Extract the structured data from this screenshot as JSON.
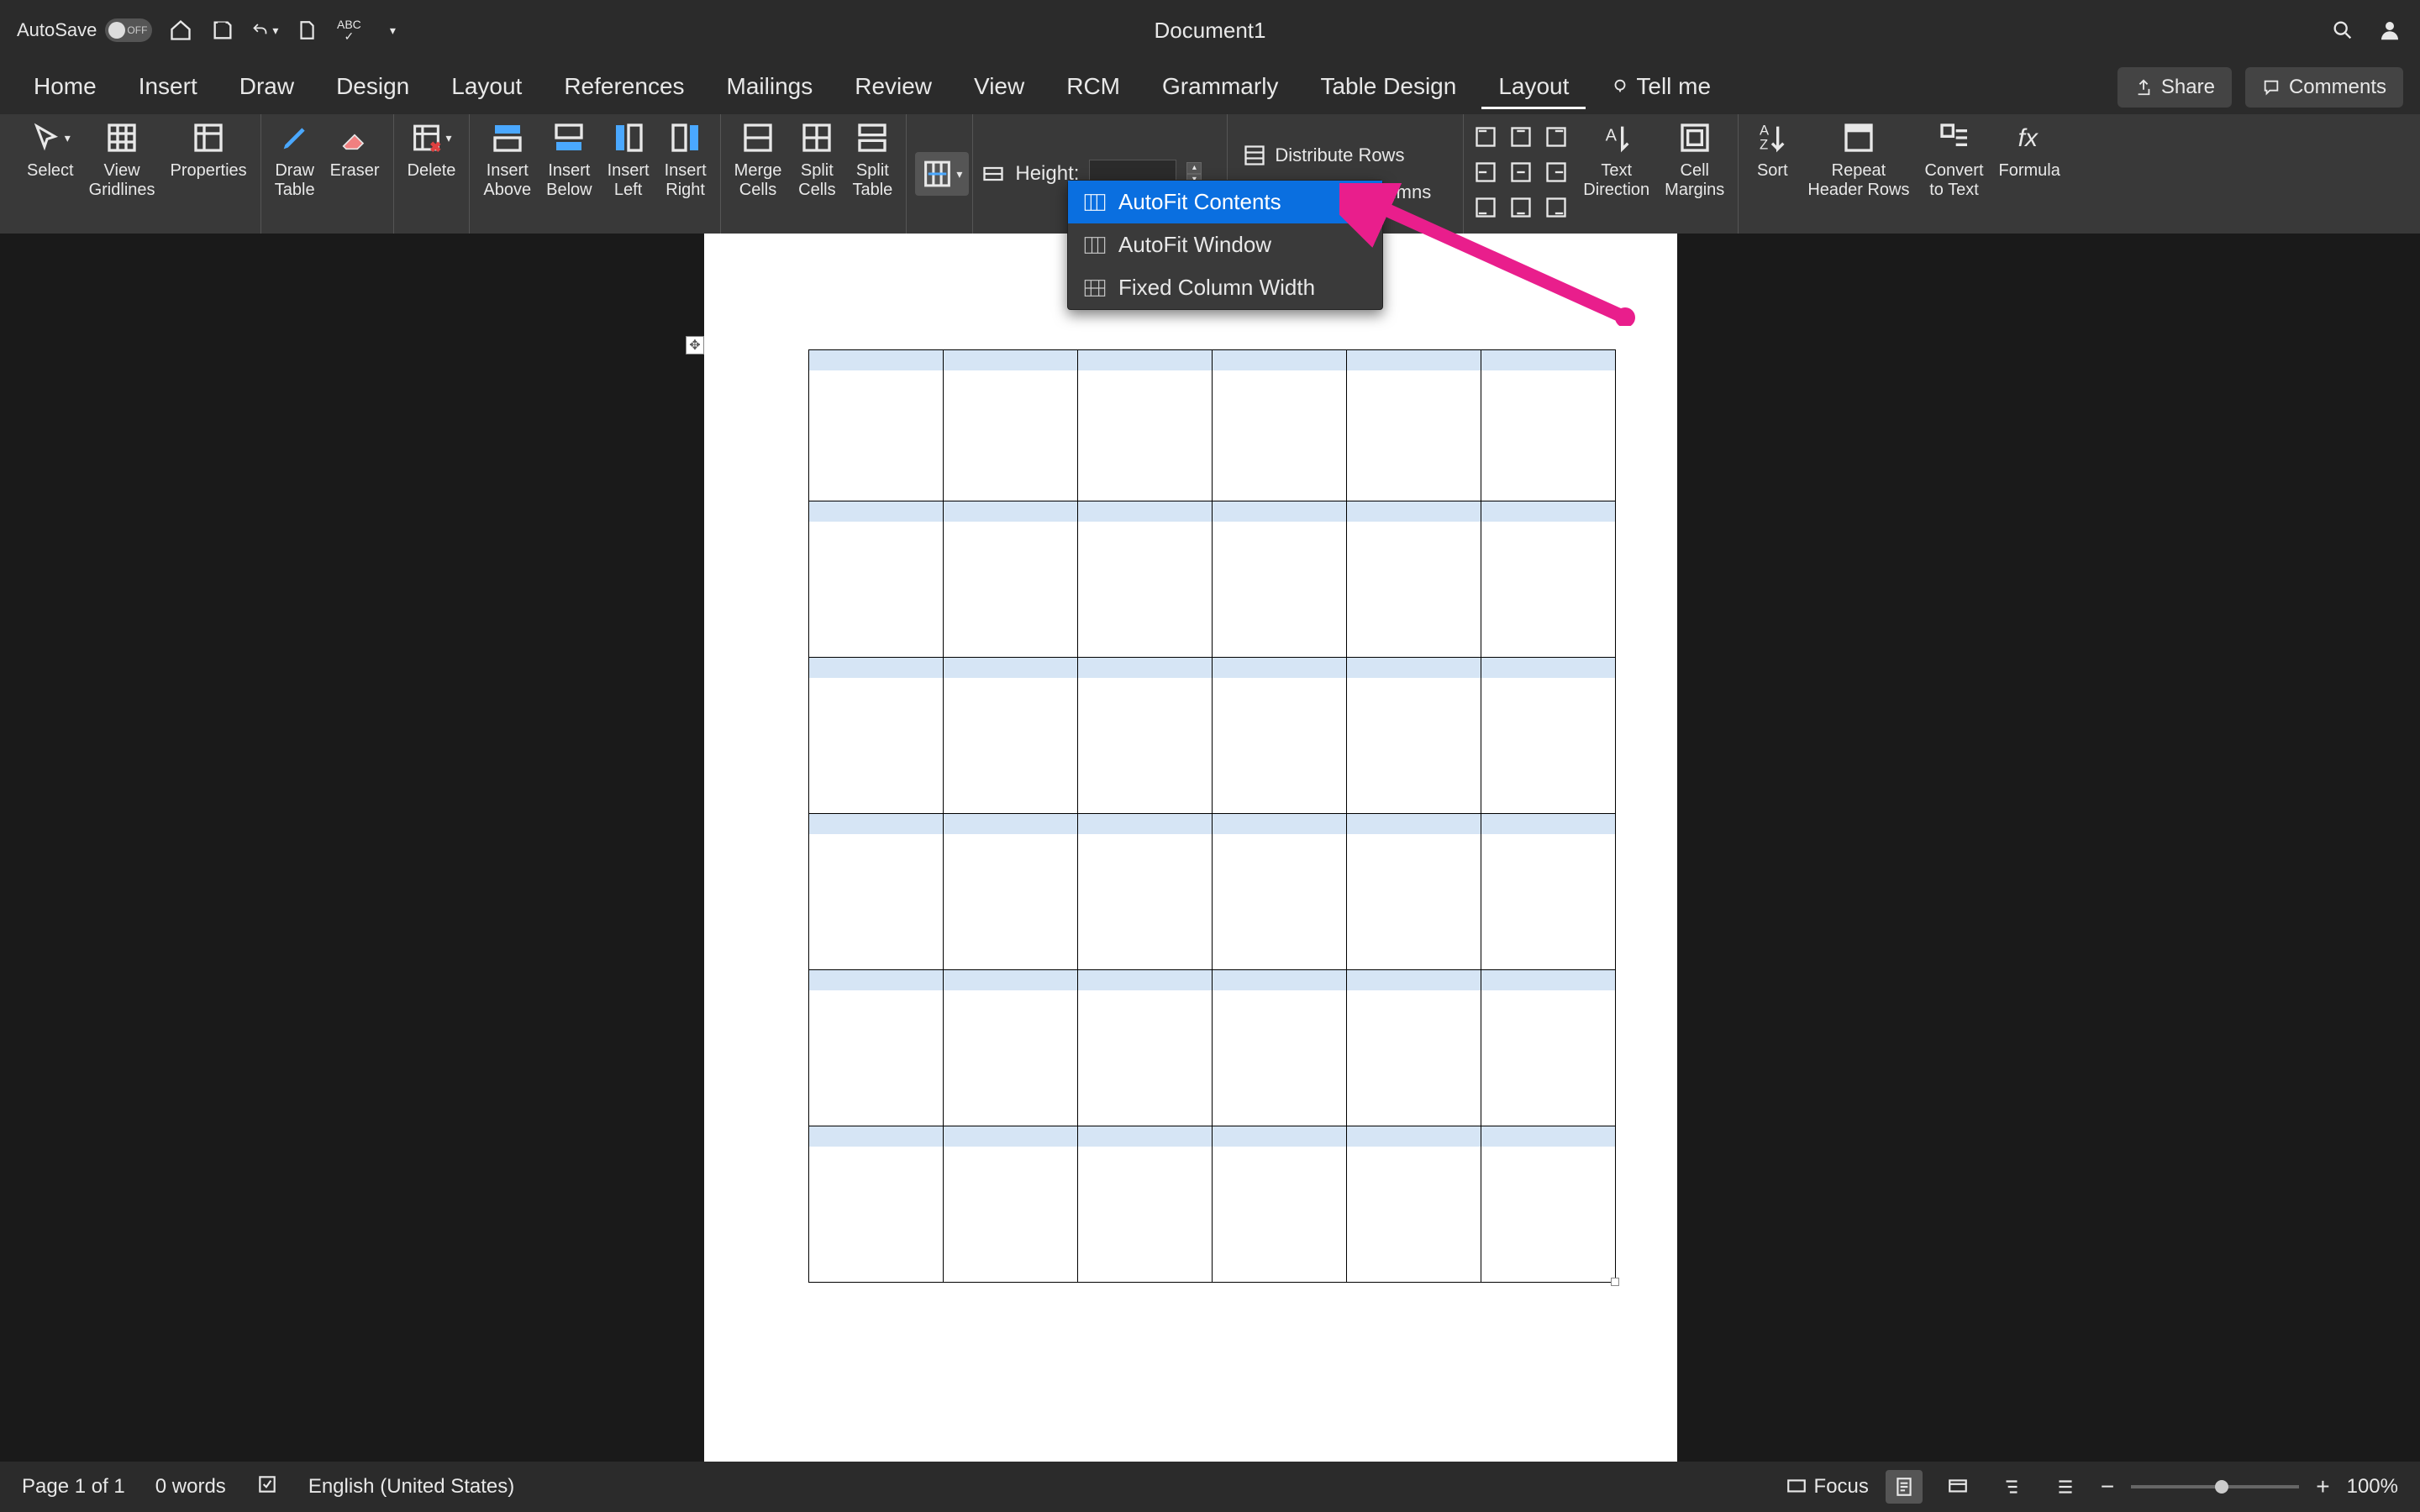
{
  "titlebar": {
    "autosave_label": "AutoSave",
    "autosave_toggle": "OFF",
    "document_title": "Document1"
  },
  "tabs": {
    "items": [
      "Home",
      "Insert",
      "Draw",
      "Design",
      "Layout",
      "References",
      "Mailings",
      "Review",
      "View",
      "RCM",
      "Grammarly",
      "Table Design",
      "Layout"
    ],
    "active_index": 12,
    "tell_me": "Tell me",
    "share": "Share",
    "comments": "Comments"
  },
  "ribbon": {
    "select": "Select",
    "view_gridlines": "View\nGridlines",
    "properties": "Properties",
    "draw_table": "Draw\nTable",
    "eraser": "Eraser",
    "delete": "Delete",
    "insert_above": "Insert\nAbove",
    "insert_below": "Insert\nBelow",
    "insert_left": "Insert\nLeft",
    "insert_right": "Insert\nRight",
    "merge_cells": "Merge\nCells",
    "split_cells": "Split\nCells",
    "split_table": "Split\nTable",
    "height_label": "Height:",
    "height_value": "",
    "distribute_rows": "Distribute Rows",
    "distribute_columns": "Distribute Columns",
    "text_direction": "Text\nDirection",
    "cell_margins": "Cell\nMargins",
    "sort": "Sort",
    "repeat_header": "Repeat\nHeader Rows",
    "convert": "Convert\nto Text",
    "formula": "Formula"
  },
  "dropdown": {
    "items": [
      "AutoFit Contents",
      "AutoFit Window",
      "Fixed Column Width"
    ],
    "selected_index": 0
  },
  "table": {
    "rows": 6,
    "cols": 6,
    "row_shade_color": "#d6e5f5",
    "border_color": "#000000"
  },
  "statusbar": {
    "page": "Page 1 of 1",
    "words": "0 words",
    "language": "English (United States)",
    "focus": "Focus",
    "zoom": "100%"
  },
  "annotation": {
    "arrow_color": "#e91e8c"
  }
}
